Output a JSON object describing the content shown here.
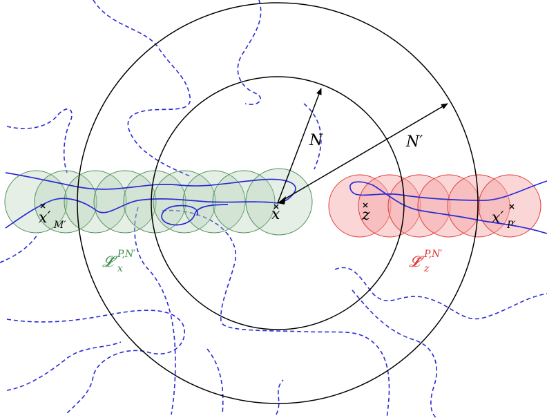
{
  "labels": {
    "N": "N",
    "N_prime": "N′",
    "x": "x",
    "z": "z",
    "x_M": "x′",
    "x_M_sub": "M′",
    "x_P": "x′",
    "x_P_sub": "P′",
    "L_green": "𝓛̃",
    "L_green_sup": "P,N′",
    "L_green_sub": "x",
    "L_red": "𝓛̃",
    "L_red_sup": "P,N′",
    "L_red_sub": "z"
  },
  "colors": {
    "green_fill": "#a8c9ac",
    "green_stroke": "#4f8f5c",
    "green_text": "#3d8c4b",
    "red_fill": "#f4a3a3",
    "red_stroke": "#e23b3b",
    "red_text": "#e23030",
    "path_blue": "#2a2ad6",
    "black": "#000000"
  }
}
